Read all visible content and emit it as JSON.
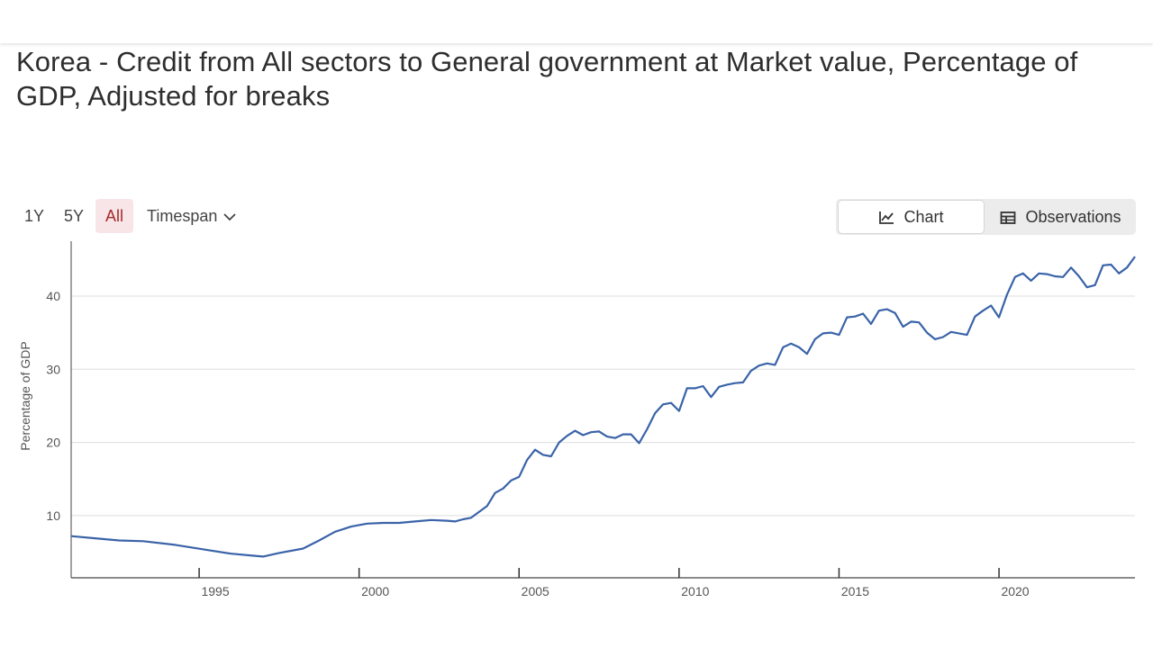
{
  "page": {
    "title": "Korea - Credit from All sectors to General government at Market value, Percentage of GDP, Adjusted for breaks"
  },
  "controls": {
    "ranges": [
      "1Y",
      "5Y",
      "All"
    ],
    "active_range": "All",
    "timespan_label": "Timespan",
    "chart_label": "Chart",
    "observations_label": "Observations",
    "active_view": "Chart"
  },
  "colors": {
    "line": "#3a63a8",
    "active_range_bg": "#f8e5e7",
    "active_range_text": "#a32b2b",
    "grid": "#dddddd"
  },
  "chart_data": {
    "type": "line",
    "title": "",
    "xlabel": "",
    "ylabel": "Percentage of GDP",
    "xlim": [
      1990.75,
      2024
    ],
    "ylim": [
      1.5,
      47.5
    ],
    "y_ticks": [
      10,
      20,
      30,
      40
    ],
    "x_ticks": [
      1995,
      2000,
      2005,
      2010,
      2015,
      2020
    ],
    "grid": "horizontal",
    "series": [
      {
        "name": "",
        "points": [
          [
            1990.75,
            7.2
          ],
          [
            1991.5,
            6.9
          ],
          [
            1992.25,
            6.6
          ],
          [
            1993.0,
            6.5
          ],
          [
            1994.0,
            6.0
          ],
          [
            1995.0,
            5.3
          ],
          [
            1995.75,
            4.8
          ],
          [
            1996.5,
            4.5
          ],
          [
            1996.75,
            4.4
          ],
          [
            1997.25,
            4.9
          ],
          [
            1998.0,
            5.5
          ],
          [
            1998.5,
            6.6
          ],
          [
            1999.0,
            7.8
          ],
          [
            1999.5,
            8.5
          ],
          [
            2000.0,
            8.9
          ],
          [
            2000.5,
            9.0
          ],
          [
            2001.0,
            9.0
          ],
          [
            2001.5,
            9.2
          ],
          [
            2002.0,
            9.4
          ],
          [
            2002.5,
            9.3
          ],
          [
            2002.75,
            9.2
          ],
          [
            2003.0,
            9.5
          ],
          [
            2003.25,
            9.7
          ],
          [
            2003.75,
            11.3
          ],
          [
            2004.0,
            13.1
          ],
          [
            2004.25,
            13.7
          ],
          [
            2004.5,
            14.8
          ],
          [
            2004.75,
            15.3
          ],
          [
            2005.0,
            17.6
          ],
          [
            2005.25,
            19.0
          ],
          [
            2005.5,
            18.3
          ],
          [
            2005.75,
            18.1
          ],
          [
            2006.0,
            20.0
          ],
          [
            2006.25,
            20.9
          ],
          [
            2006.5,
            21.6
          ],
          [
            2006.75,
            21.0
          ],
          [
            2007.0,
            21.4
          ],
          [
            2007.25,
            21.5
          ],
          [
            2007.5,
            20.8
          ],
          [
            2007.75,
            20.6
          ],
          [
            2008.0,
            21.1
          ],
          [
            2008.25,
            21.1
          ],
          [
            2008.5,
            19.9
          ],
          [
            2008.75,
            21.8
          ],
          [
            2009.0,
            24.0
          ],
          [
            2009.25,
            25.2
          ],
          [
            2009.5,
            25.4
          ],
          [
            2009.75,
            24.3
          ],
          [
            2010.0,
            27.4
          ],
          [
            2010.25,
            27.4
          ],
          [
            2010.5,
            27.7
          ],
          [
            2010.75,
            26.2
          ],
          [
            2011.0,
            27.6
          ],
          [
            2011.25,
            27.9
          ],
          [
            2011.5,
            28.1
          ],
          [
            2011.75,
            28.2
          ],
          [
            2012.0,
            29.8
          ],
          [
            2012.25,
            30.5
          ],
          [
            2012.5,
            30.8
          ],
          [
            2012.75,
            30.6
          ],
          [
            2013.0,
            33.0
          ],
          [
            2013.25,
            33.5
          ],
          [
            2013.5,
            33.0
          ],
          [
            2013.75,
            32.1
          ],
          [
            2014.0,
            34.1
          ],
          [
            2014.25,
            34.9
          ],
          [
            2014.5,
            35.0
          ],
          [
            2014.75,
            34.7
          ],
          [
            2015.0,
            37.1
          ],
          [
            2015.25,
            37.2
          ],
          [
            2015.5,
            37.6
          ],
          [
            2015.75,
            36.2
          ],
          [
            2016.0,
            38.0
          ],
          [
            2016.25,
            38.2
          ],
          [
            2016.5,
            37.7
          ],
          [
            2016.75,
            35.8
          ],
          [
            2017.0,
            36.5
          ],
          [
            2017.25,
            36.4
          ],
          [
            2017.5,
            35.0
          ],
          [
            2017.75,
            34.1
          ],
          [
            2018.0,
            34.4
          ],
          [
            2018.25,
            35.1
          ],
          [
            2018.5,
            34.9
          ],
          [
            2018.75,
            34.7
          ],
          [
            2019.0,
            37.2
          ],
          [
            2019.25,
            38.0
          ],
          [
            2019.5,
            38.7
          ],
          [
            2019.75,
            37.1
          ],
          [
            2020.0,
            40.2
          ],
          [
            2020.25,
            42.6
          ],
          [
            2020.5,
            43.1
          ],
          [
            2020.75,
            42.1
          ],
          [
            2021.0,
            43.1
          ],
          [
            2021.25,
            43.0
          ],
          [
            2021.5,
            42.7
          ],
          [
            2021.75,
            42.6
          ],
          [
            2022.0,
            43.9
          ],
          [
            2022.25,
            42.7
          ],
          [
            2022.5,
            41.2
          ],
          [
            2022.75,
            41.5
          ],
          [
            2023.0,
            44.2
          ],
          [
            2023.25,
            44.3
          ],
          [
            2023.5,
            43.1
          ],
          [
            2023.75,
            43.9
          ],
          [
            2024.0,
            45.4
          ]
        ]
      }
    ]
  }
}
